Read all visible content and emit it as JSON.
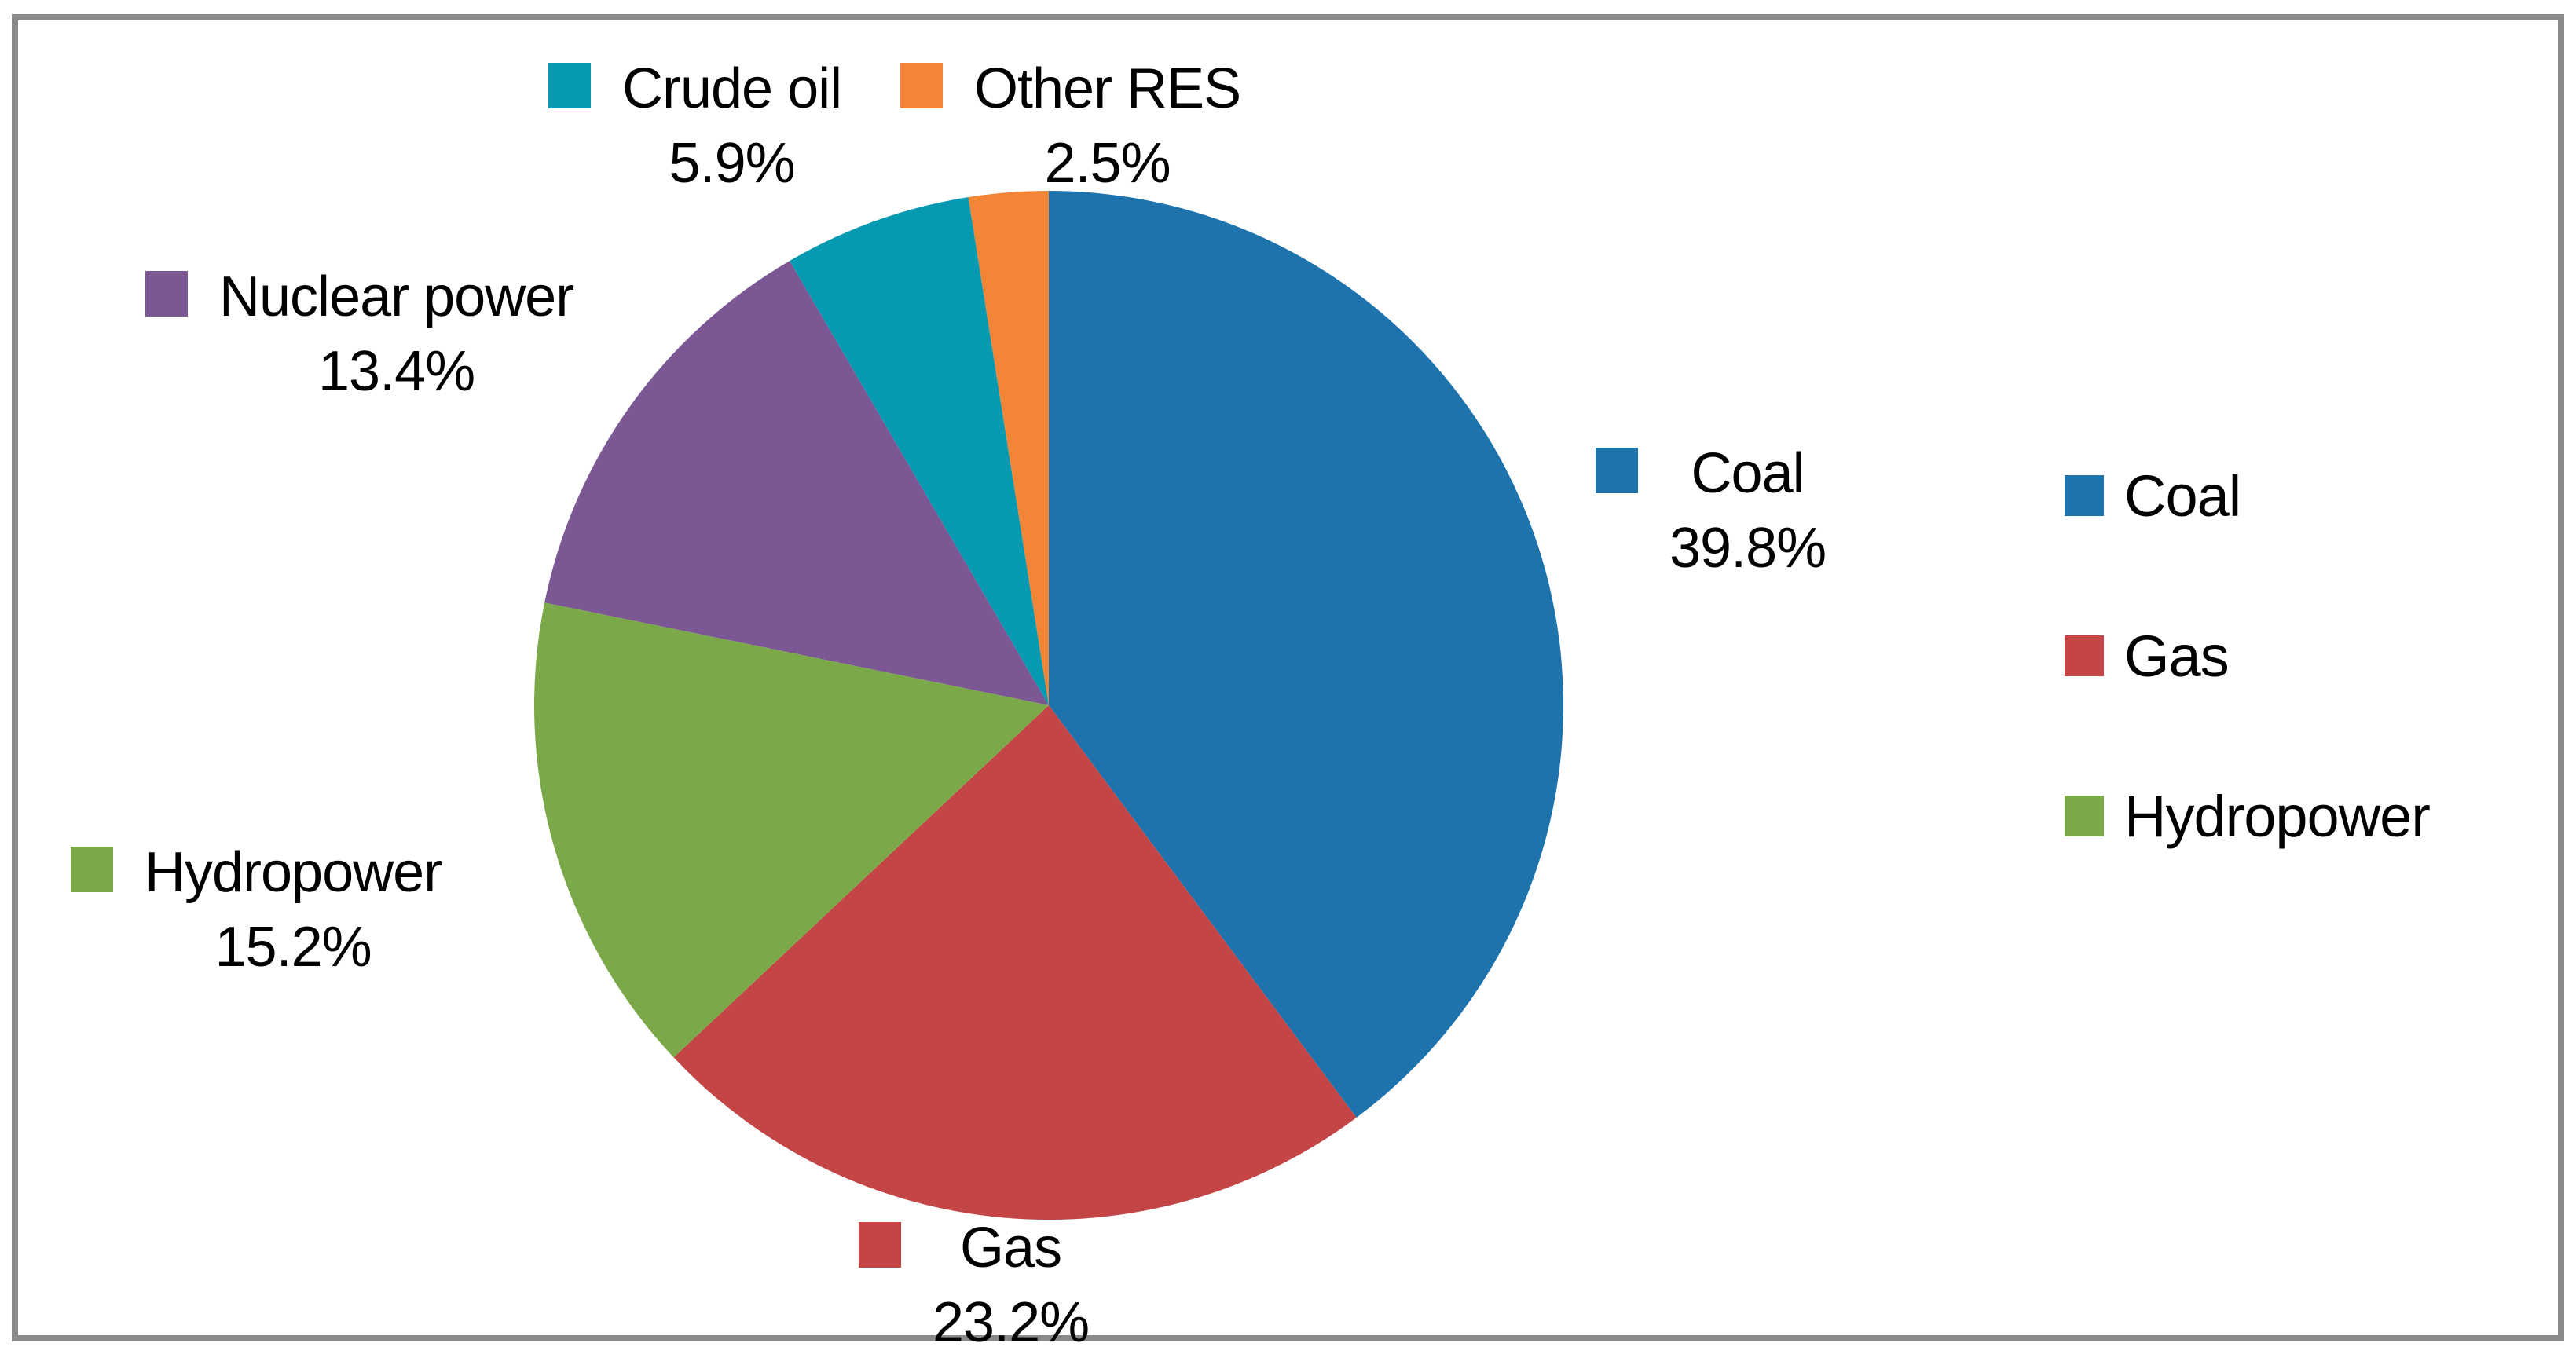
{
  "chart_data": {
    "type": "pie",
    "title": "",
    "start_angle_deg": 0,
    "direction": "clockwise",
    "slices": [
      {
        "label": "Coal",
        "value": 39.8,
        "pct_label": "39.8%",
        "color": "#1E73AD"
      },
      {
        "label": "Gas",
        "value": 23.2,
        "pct_label": "23.2%",
        "color": "#C44546"
      },
      {
        "label": "Hydropower",
        "value": 15.2,
        "pct_label": "15.2%",
        "color": "#7BA94A"
      },
      {
        "label": "Nuclear power",
        "value": 13.4,
        "pct_label": "13.4%",
        "color": "#7B5794"
      },
      {
        "label": "Crude oil",
        "value": 5.9,
        "pct_label": "5.9%",
        "color": "#0599B2"
      },
      {
        "label": "Other RES",
        "value": 2.5,
        "pct_label": "2.5%",
        "color": "#F28536"
      }
    ],
    "legend": {
      "position": "right",
      "items": [
        {
          "label": "Coal"
        },
        {
          "label": "Gas"
        },
        {
          "label": "Hydropower"
        }
      ]
    },
    "frame_color": "#8A8A8A",
    "background_color": "#FFFFFF",
    "text_color": "#000000"
  }
}
